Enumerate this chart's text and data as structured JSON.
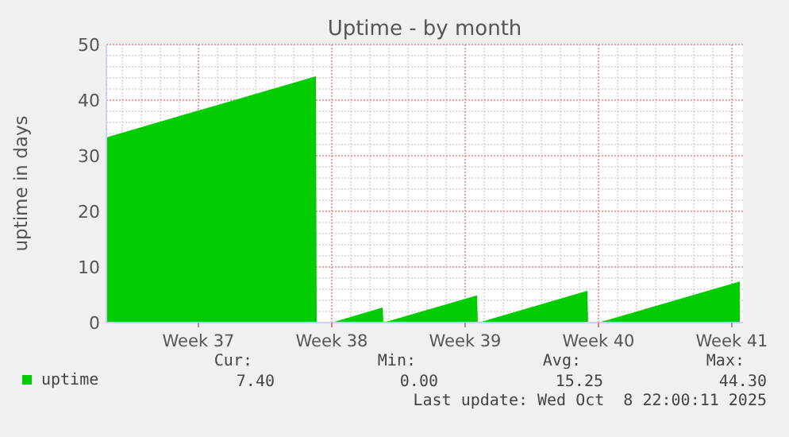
{
  "chart_data": {
    "type": "area",
    "title": "Uptime - by month",
    "ylabel": "uptime in days",
    "xlim": [
      "2025-09-05T16:00",
      "2025-10-09T02:00"
    ],
    "xticks": [
      {
        "value": "2025-09-10T12:00",
        "label": "Week 37"
      },
      {
        "value": "2025-09-17T12:00",
        "label": "Week 38"
      },
      {
        "value": "2025-09-24T12:00",
        "label": "Week 39"
      },
      {
        "value": "2025-10-01T12:00",
        "label": "Week 40"
      },
      {
        "value": "2025-10-08T12:00",
        "label": "Week 41"
      }
    ],
    "ylim": [
      0,
      50
    ],
    "yticks": [
      0,
      10,
      20,
      30,
      40,
      50
    ],
    "grid": true,
    "legend": "bottom left",
    "series": [
      {
        "name": "uptime",
        "color": "#00cc00",
        "x": [
          "2025-09-05T16:00",
          "2025-09-16T16:00",
          "2025-09-16T17:00",
          "2025-09-17T12:00",
          "2025-09-20T04:00",
          "2025-09-20T05:00",
          "2025-09-25T03:00",
          "2025-09-25T04:00",
          "2025-09-25T05:00",
          "2025-09-30T22:00",
          "2025-09-30T23:00",
          "2025-10-01T12:00",
          "2025-10-08T22:00"
        ],
        "values": [
          33.3,
          44.3,
          0,
          0,
          2.7,
          0,
          4.9,
          0,
          0,
          5.7,
          0,
          0,
          7.4
        ]
      }
    ],
    "annotations": [
      "Cur:",
      "Min:",
      "Avg:",
      "Max:",
      "7.40",
      "0.00",
      "15.25",
      "44.30",
      "Last update: Wed Oct  8 22:00:11 2025"
    ]
  }
}
